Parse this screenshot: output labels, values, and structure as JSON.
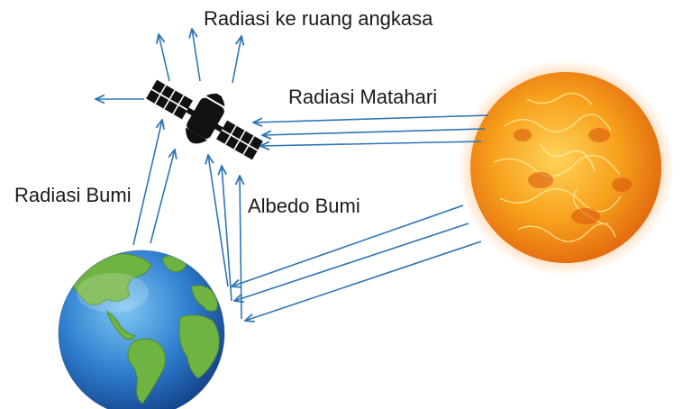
{
  "labels": {
    "space_radiation": "Radiasi ke ruang angkasa",
    "solar_radiation": "Radiasi Matahari",
    "earth_radiation": "Radiasi Bumi",
    "earth_albedo": "Albedo Bumi"
  },
  "colors": {
    "arrow": "#2e75b6",
    "ocean": "#2f7fd0",
    "land": "#6fb443",
    "sun_core": "#f6a21a",
    "sun_glow": "#ff8a2a",
    "satellite": "#111111"
  },
  "icons": {
    "sun": "sun-icon",
    "earth": "earth-globe-icon",
    "satellite": "satellite-icon"
  }
}
